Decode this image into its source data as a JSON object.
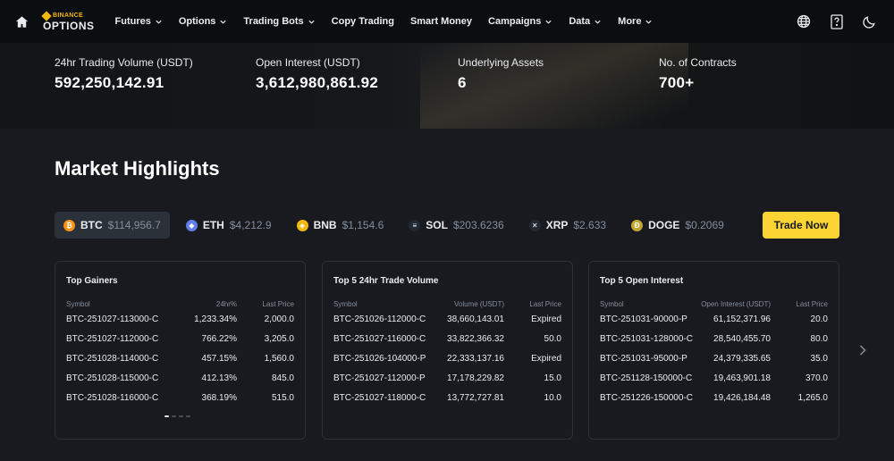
{
  "nav": {
    "logo_top": "BINANCE",
    "logo_bottom": "OPTIONS",
    "items": [
      {
        "label": "Futures",
        "dropdown": true
      },
      {
        "label": "Options",
        "dropdown": true
      },
      {
        "label": "Trading Bots",
        "dropdown": true
      },
      {
        "label": "Copy Trading",
        "dropdown": false
      },
      {
        "label": "Smart Money",
        "dropdown": false
      },
      {
        "label": "Campaigns",
        "dropdown": true
      },
      {
        "label": "Data",
        "dropdown": true
      },
      {
        "label": "More",
        "dropdown": true
      }
    ],
    "right_icons": [
      "globe-icon",
      "help-icon",
      "moon-icon"
    ]
  },
  "stats": [
    {
      "label": "24hr Trading Volume (USDT)",
      "value": "592,250,142.91"
    },
    {
      "label": "Open Interest (USDT)",
      "value": "3,612,980,861.92"
    },
    {
      "label": "Underlying Assets",
      "value": "6"
    },
    {
      "label": "No. of Contracts",
      "value": "700+"
    }
  ],
  "heading": "Market Highlights",
  "assets": [
    {
      "symbol": "BTC",
      "price": "$114,956.7",
      "color": "#f7931a",
      "glyph": "₿",
      "active": true
    },
    {
      "symbol": "ETH",
      "price": "$4,212.9",
      "color": "#627eea",
      "glyph": "◆",
      "active": false
    },
    {
      "symbol": "BNB",
      "price": "$1,154.6",
      "color": "#f0b90b",
      "glyph": "◈",
      "active": false
    },
    {
      "symbol": "SOL",
      "price": "$203.6236",
      "color": "#1f2a36",
      "glyph": "≡",
      "active": false
    },
    {
      "symbol": "XRP",
      "price": "$2.633",
      "color": "#23292f",
      "glyph": "✕",
      "active": false
    },
    {
      "symbol": "DOGE",
      "price": "$0.2069",
      "color": "#c2a633",
      "glyph": "Ð",
      "active": false
    }
  ],
  "trade_now": "Trade Now",
  "cards": [
    {
      "title": "Top Gainers",
      "headers": [
        "Symbol",
        "24hr%",
        "Last Price"
      ],
      "rows": [
        [
          "BTC-251027-113000-C",
          "1,233.34%",
          "2,000.0"
        ],
        [
          "BTC-251027-112000-C",
          "766.22%",
          "3,205.0"
        ],
        [
          "BTC-251028-114000-C",
          "457.15%",
          "1,560.0"
        ],
        [
          "BTC-251028-115000-C",
          "412.13%",
          "845.0"
        ],
        [
          "BTC-251028-116000-C",
          "368.19%",
          "515.0"
        ]
      ]
    },
    {
      "title": "Top 5 24hr Trade Volume",
      "headers": [
        "Symbol",
        "Volume (USDT)",
        "Last Price"
      ],
      "rows": [
        [
          "BTC-251026-112000-C",
          "38,660,143.01",
          "Expired"
        ],
        [
          "BTC-251027-116000-C",
          "33,822,366.32",
          "50.0"
        ],
        [
          "BTC-251026-104000-P",
          "22,333,137.16",
          "Expired"
        ],
        [
          "BTC-251027-112000-P",
          "17,178,229.82",
          "15.0"
        ],
        [
          "BTC-251027-118000-C",
          "13,772,727.81",
          "10.0"
        ]
      ]
    },
    {
      "title": "Top 5 Open Interest",
      "headers": [
        "Symbol",
        "Open Interest (USDT)",
        "Last Price"
      ],
      "rows": [
        [
          "BTC-251031-90000-P",
          "61,152,371.96",
          "20.0"
        ],
        [
          "BTC-251031-128000-C",
          "28,540,455.70",
          "80.0"
        ],
        [
          "BTC-251031-95000-P",
          "24,379,335.65",
          "35.0"
        ],
        [
          "BTC-251128-150000-C",
          "19,463,901.18",
          "370.0"
        ],
        [
          "BTC-251226-150000-C",
          "19,426,184.48",
          "1,265.0"
        ]
      ]
    }
  ],
  "carousel": {
    "pages": 4,
    "active_page": 1
  }
}
